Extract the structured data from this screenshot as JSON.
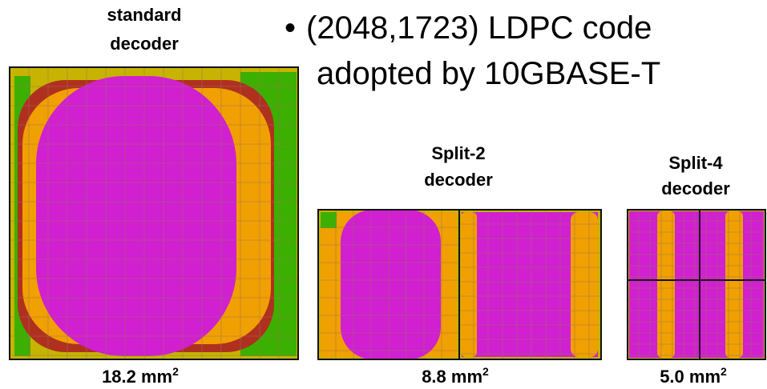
{
  "bullet": {
    "lines": [
      "(2048,1723) LDPC code",
      "adopted by 10GBASE-T"
    ]
  },
  "decoders": [
    {
      "title": [
        "standard",
        "decoder"
      ],
      "area": "18.2 mm",
      "area_exponent": "2"
    },
    {
      "title": [
        "Split-2",
        "decoder"
      ],
      "area": "8.8 mm",
      "area_exponent": "2"
    },
    {
      "title": [
        "Split-4",
        "decoder"
      ],
      "area": "5.0 mm",
      "area_exponent": "2"
    }
  ]
}
